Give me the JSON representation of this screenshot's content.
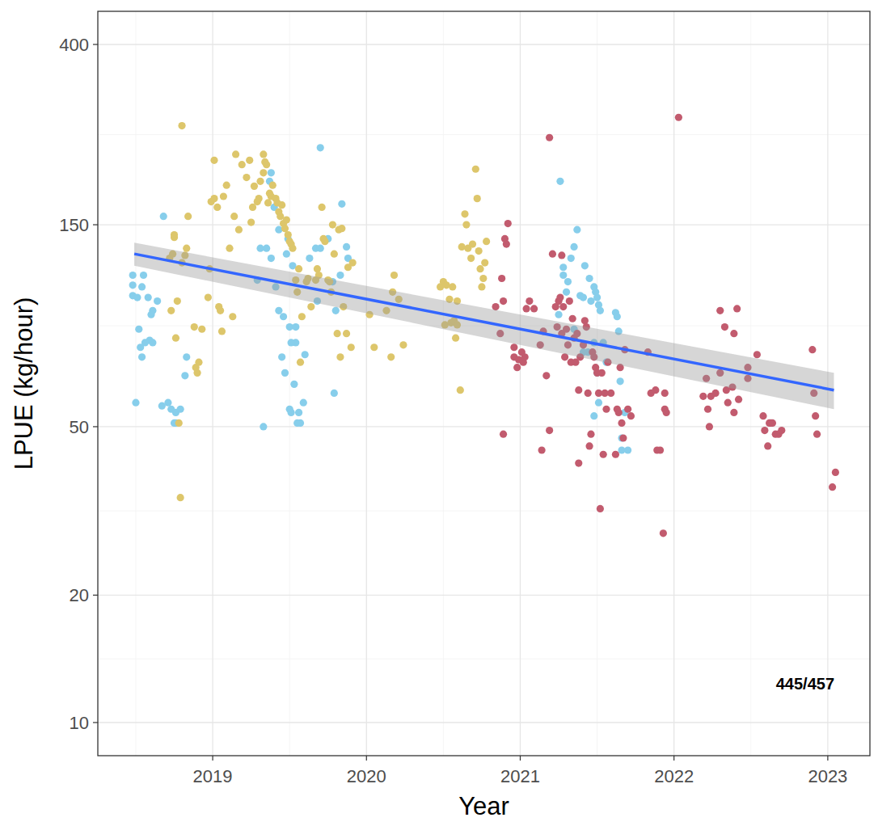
{
  "chart_data": {
    "type": "scatter",
    "xlabel": "Year",
    "ylabel": "LPUE (kg/hour)",
    "annotation": "445/457",
    "log": "y",
    "grid": true,
    "xlim": [
      2018.253,
      2023.274
    ],
    "xticks": [
      2019,
      2020,
      2021,
      2022,
      2023
    ],
    "ylim": [
      8.35,
      479
    ],
    "yticks": [
      10,
      20,
      50,
      150,
      400
    ],
    "series": [
      {
        "color": "#87ceeb",
        "x": [
          2018.48,
          2018.48,
          2018.48,
          2018.55,
          2018.54,
          2018.51,
          2018.5,
          2018.52,
          2018.53,
          2018.54,
          2018.56,
          2018.58,
          2018.6,
          2018.59,
          2018.61,
          2018.64,
          2018.67,
          2018.68,
          2018.71,
          2018.73,
          2018.76,
          2018.75,
          2018.76,
          2018.79,
          2018.82,
          2018.83,
          2018.61,
          2019.33,
          2019.29,
          2019.31,
          2019.35,
          2019.38,
          2019.37,
          2019.4,
          2019.43,
          2019.38,
          2019.41,
          2019.43,
          2019.46,
          2019.45,
          2019.47,
          2019.5,
          2019.52,
          2019.54,
          2019.54,
          2019.51,
          2019.5,
          2019.51,
          2019.53,
          2019.56,
          2019.57,
          2019.55,
          2019.59,
          2019.6,
          2019.48,
          2019.49,
          2019.63,
          2019.67,
          2019.7,
          2019.7,
          2019.75,
          2019.79,
          2019.78,
          2019.8,
          2019.83,
          2019.84,
          2019.87,
          2019.88,
          2019.68,
          2021.26,
          2021.25,
          2021.28,
          2021.28,
          2021.3,
          2021.31,
          2021.33,
          2021.35,
          2021.37,
          2021.39,
          2021.41,
          2021.42,
          2021.45,
          2021.46,
          2021.48,
          2021.49,
          2021.5,
          2021.51,
          2021.52,
          2021.48,
          2021.5,
          2021.54,
          2021.62,
          2021.63,
          2021.64,
          2021.65,
          2021.66,
          2021.68,
          2021.7,
          2021.66,
          2021.51,
          2021.56,
          2021.48,
          2021.44,
          2021.41,
          2021.35
        ],
        "values": [
          114,
          102,
          108,
          114,
          107,
          101,
          57,
          85,
          77,
          73,
          79,
          101,
          92,
          80,
          94,
          99,
          56,
          157,
          57,
          55,
          54,
          51,
          51,
          55,
          66,
          73,
          79,
          50,
          111,
          132,
          132,
          199,
          190,
          165,
          146,
          125,
          107,
          94,
          91,
          73,
          67,
          86,
          120,
          86,
          79,
          79,
          55,
          54,
          63,
          54,
          51,
          51,
          57,
          74,
          128,
          139,
          125,
          132,
          228,
          132,
          139,
          60,
          110,
          94,
          114,
          168,
          133,
          125,
          99,
          190,
          92,
          119,
          114,
          104,
          110,
          125,
          133,
          146,
          102,
          101,
          120,
          112,
          99,
          107,
          104,
          101,
          97,
          94,
          79,
          67,
          79,
          93,
          91,
          84,
          64,
          47,
          54,
          44,
          44,
          57,
          71,
          53,
          75,
          75,
          85
        ]
      },
      {
        "color": "#ddc66b",
        "x": [
          2018.8,
          2018.72,
          2018.73,
          2018.74,
          2018.75,
          2018.75,
          2018.76,
          2018.77,
          2018.8,
          2018.82,
          2018.83,
          2018.84,
          2018.78,
          2018.79,
          2018.88,
          2018.89,
          2018.91,
          2018.9,
          2018.93,
          2018.97,
          2018.98,
          2018.99,
          2019.01,
          2019.01,
          2019.03,
          2019.04,
          2019.05,
          2019.06,
          2019.07,
          2019.09,
          2019.11,
          2019.13,
          2019.14,
          2019.15,
          2019.17,
          2019.19,
          2019.22,
          2019.24,
          2019.25,
          2019.26,
          2019.27,
          2019.29,
          2019.3,
          2019.31,
          2019.33,
          2019.33,
          2019.34,
          2019.35,
          2019.36,
          2019.37,
          2019.38,
          2019.39,
          2019.41,
          2019.42,
          2019.43,
          2019.44,
          2019.45,
          2019.46,
          2019.47,
          2019.48,
          2019.49,
          2019.5,
          2019.51,
          2019.52,
          2019.54,
          2019.55,
          2019.56,
          2019.57,
          2019.58,
          2019.61,
          2019.62,
          2019.64,
          2019.67,
          2019.68,
          2019.69,
          2019.71,
          2019.72,
          2019.73,
          2019.75,
          2019.76,
          2019.77,
          2019.78,
          2019.79,
          2019.81,
          2019.82,
          2019.83,
          2019.84,
          2019.85,
          2019.87,
          2019.88,
          2019.9,
          2019.91,
          2020.02,
          2020.05,
          2020.13,
          2020.16,
          2020.17,
          2020.18,
          2020.21,
          2020.24,
          2020.48,
          2020.5,
          2020.51,
          2020.52,
          2020.54,
          2020.55,
          2020.56,
          2020.57,
          2020.58,
          2020.59,
          2020.59,
          2020.61,
          2020.62,
          2020.64,
          2020.65,
          2020.66,
          2020.68,
          2020.69,
          2020.71,
          2020.72,
          2020.73,
          2020.74,
          2020.75,
          2020.76,
          2020.77,
          2020.78
        ],
        "values": [
          257,
          125,
          94,
          128,
          140,
          142,
          81,
          99,
          122,
          127,
          132,
          157,
          51,
          34,
          86,
          69,
          71,
          67,
          85,
          101,
          118,
          170,
          173,
          213,
          165,
          96,
          94,
          84,
          175,
          186,
          132,
          91,
          157,
          220,
          146,
          208,
          194,
          213,
          152,
          165,
          185,
          170,
          173,
          190,
          199,
          220,
          211,
          208,
          169,
          178,
          175,
          186,
          173,
          169,
          161,
          157,
          167,
          151,
          147,
          154,
          142,
          137,
          135,
          132,
          111,
          104,
          118,
          71,
          91,
          110,
          112,
          96,
          111,
          118,
          114,
          165,
          139,
          137,
          111,
          110,
          104,
          150,
          128,
          83,
          146,
          73,
          147,
          96,
          83,
          119,
          77,
          122,
          92,
          77,
          94,
          73,
          104,
          114,
          100,
          78,
          107,
          110,
          87,
          108,
          100,
          88,
          107,
          89,
          81,
          99,
          87,
          61,
          133,
          159,
          150,
          132,
          125,
          135,
          203,
          173,
          130,
          118,
          107,
          112,
          122,
          137
        ]
      },
      {
        "color": "#c25b6e",
        "x": [
          2020.92,
          2020.9,
          2020.91,
          2020.88,
          2020.89,
          2020.84,
          2020.87,
          2020.89,
          2020.96,
          2020.96,
          2020.98,
          2020.99,
          2021.01,
          2021.02,
          2021.03,
          2021.04,
          2021.06,
          2021.09,
          2021.13,
          2021.15,
          2021.14,
          2021.17,
          2021.19,
          2021.19,
          2021.21,
          2021.23,
          2021.24,
          2021.25,
          2021.26,
          2021.27,
          2021.27,
          2021.28,
          2021.29,
          2021.3,
          2021.31,
          2021.32,
          2021.33,
          2021.34,
          2021.35,
          2021.36,
          2021.37,
          2021.38,
          2021.38,
          2021.39,
          2021.41,
          2021.42,
          2021.43,
          2021.44,
          2021.45,
          2021.46,
          2021.47,
          2021.48,
          2021.49,
          2021.5,
          2021.51,
          2021.52,
          2021.53,
          2021.54,
          2021.55,
          2021.56,
          2021.57,
          2021.59,
          2021.62,
          2021.63,
          2021.64,
          2021.65,
          2021.66,
          2021.67,
          2021.68,
          2021.7,
          2021.72,
          2021.83,
          2021.85,
          2021.88,
          2021.89,
          2021.91,
          2021.93,
          2021.94,
          2021.94,
          2021.95,
          2022.03,
          2022.19,
          2022.21,
          2022.22,
          2022.23,
          2022.24,
          2022.27,
          2022.3,
          2022.3,
          2022.33,
          2022.34,
          2022.35,
          2022.38,
          2022.39,
          2022.39,
          2022.41,
          2022.42,
          2022.48,
          2022.48,
          2022.54,
          2022.58,
          2022.59,
          2022.61,
          2022.62,
          2022.63,
          2022.64,
          2022.66,
          2022.68,
          2022.7,
          2022.9,
          2022.91,
          2022.92,
          2022.93,
          2023.03,
          2023.05
        ],
        "values": [
          151,
          139,
          135,
          112,
          99,
          96,
          83,
          48,
          77,
          73,
          69,
          72,
          75,
          71,
          73,
          95,
          99,
          95,
          78,
          84,
          44,
          66,
          241,
          49,
          128,
          96,
          86,
          99,
          101,
          127,
          83,
          96,
          73,
          85,
          78,
          99,
          71,
          90,
          81,
          71,
          83,
          61,
          41,
          73,
          78,
          89,
          86,
          60,
          45,
          48,
          75,
          73,
          69,
          67,
          60,
          32,
          67,
          43,
          60,
          55,
          71,
          60,
          43,
          55,
          54,
          69,
          51,
          47,
          76,
          55,
          53,
          75,
          60,
          61,
          44,
          44,
          28,
          55,
          60,
          54,
          269,
          59,
          65,
          55,
          50,
          59,
          60,
          67,
          94,
          86,
          61,
          57,
          62,
          54,
          83,
          95,
          58,
          65,
          69,
          74,
          53,
          49,
          45,
          51,
          51,
          51,
          48,
          48,
          49,
          76,
          60,
          53,
          48,
          36,
          39
        ]
      }
    ],
    "trend": {
      "color": "#3366ff",
      "x": [
        2018.49,
        2023.04
      ],
      "values": [
        128,
        61
      ],
      "lower": [
        120,
        55
      ],
      "upper": [
        136,
        67
      ]
    }
  }
}
